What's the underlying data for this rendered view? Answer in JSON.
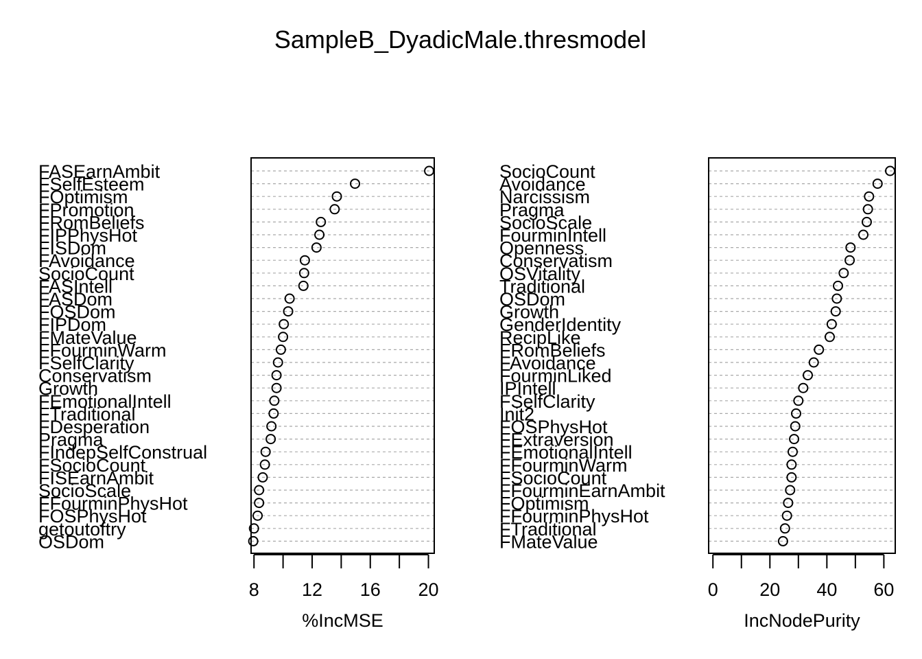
{
  "title": "SampleB_DyadicMale.thresmodel",
  "chart_data": [
    {
      "type": "scatter",
      "xlabel": "%IncMSE",
      "xlim": [
        7.8,
        20.4
      ],
      "xticks": [
        8,
        10,
        12,
        14,
        16,
        18,
        20
      ],
      "xtick_labels": [
        "8",
        "",
        "12",
        "",
        "16",
        "",
        "20"
      ],
      "grid": true,
      "categories": [
        "FASEarnAmbit",
        "FSelfEsteem",
        "FOptimism",
        "FPromotion",
        "FRomBeliefs",
        "FIPPhysHot",
        "FISDom",
        "FAvoidance",
        "SocioCount",
        "FASIntell",
        "FASDom",
        "FOSDom",
        "FIPDom",
        "FMateValue",
        "FFourminWarm",
        "FSelfClarity",
        "Conservatism",
        "Growth",
        "FEmotionalIntell",
        "FTraditional",
        "FDesperation",
        "Pragma",
        "FIndepSelfConstrual",
        "FSocioCount",
        "FISEarnAmbit",
        "SocioScale",
        "FFourminPhysHot",
        "FOSPhysHot",
        "getoutoftry",
        "OSDom"
      ],
      "values": [
        20.05,
        14.95,
        13.7,
        13.55,
        12.6,
        12.5,
        12.3,
        11.5,
        11.45,
        11.4,
        10.45,
        10.35,
        10.05,
        10.0,
        9.85,
        9.65,
        9.55,
        9.55,
        9.4,
        9.35,
        9.2,
        9.15,
        8.8,
        8.75,
        8.6,
        8.35,
        8.35,
        8.25,
        8.0,
        7.95
      ]
    },
    {
      "type": "scatter",
      "xlabel": "IncNodePurity",
      "xlim": [
        -1.5,
        64
      ],
      "xticks": [
        0,
        10,
        20,
        30,
        40,
        50,
        60
      ],
      "xtick_labels": [
        "0",
        "",
        "20",
        "",
        "40",
        "",
        "60"
      ],
      "grid": true,
      "categories": [
        "SocioCount",
        "Avoidance",
        "Narcissism",
        "Pragma",
        "SocioScale",
        "FourminIntell",
        "Openness",
        "Conservatism",
        "OSVitality",
        "Traditional",
        "OSDom",
        "Growth",
        "GenderIdentity",
        "RecipLike",
        "FRomBeliefs",
        "FAvoidance",
        "FourminLiked",
        "IPIntell",
        "FSelfClarity",
        "Init2",
        "FOSPhysHot",
        "FExtraversion",
        "FEmotionalIntell",
        "FFourminWarm",
        "FSocioCount",
        "FFourminEarnAmbit",
        "FOptimism",
        "FFourminPhysHot",
        "FTraditional",
        "FMateValue"
      ],
      "values": [
        62.2,
        57.8,
        54.8,
        54.4,
        54.0,
        52.8,
        48.3,
        48.0,
        45.9,
        43.9,
        43.5,
        43.1,
        41.7,
        41.0,
        37.2,
        35.4,
        33.3,
        31.7,
        30.0,
        29.2,
        28.9,
        28.5,
        28.0,
        27.6,
        27.6,
        27.1,
        26.4,
        26.0,
        25.3,
        24.6
      ]
    }
  ]
}
